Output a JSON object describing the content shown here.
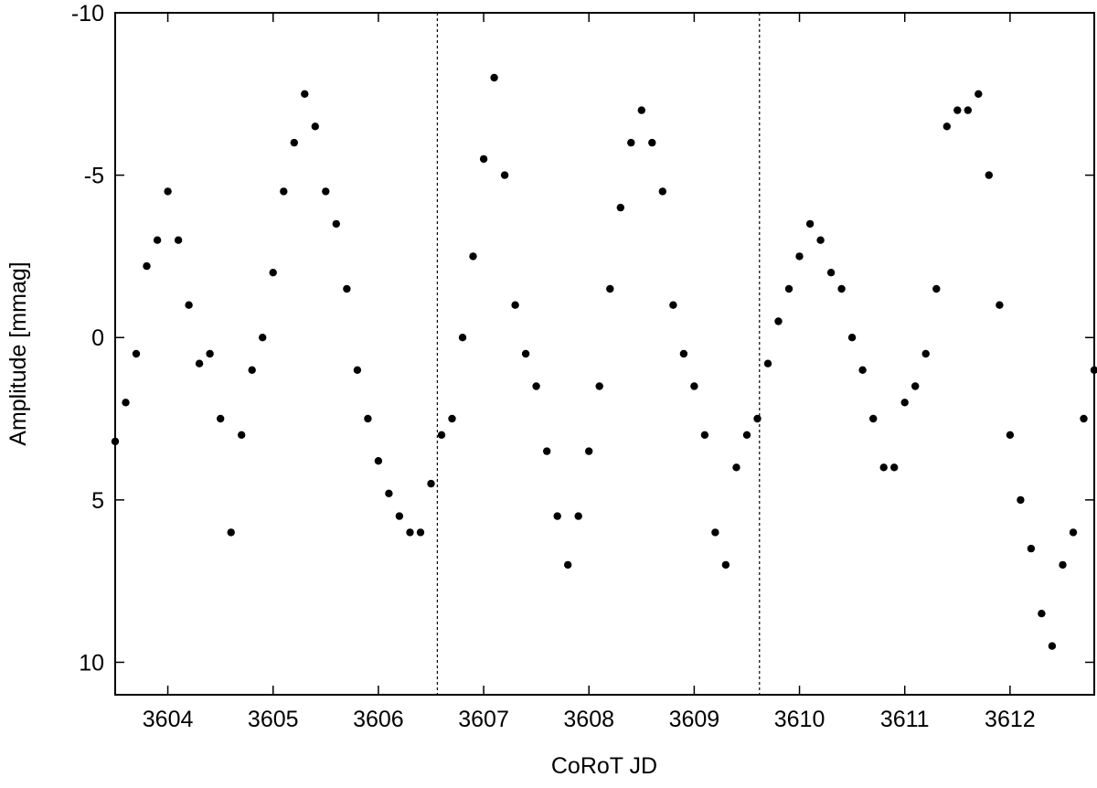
{
  "chart_data": {
    "type": "scatter",
    "title": "",
    "xlabel": "CoRoT JD",
    "ylabel": "Amplitude [mmag]",
    "xlim": [
      3603.5,
      3612.8
    ],
    "ylim": [
      11,
      -10
    ],
    "y_axis_inverted": true,
    "grid": false,
    "legend": "none",
    "marker_color": "#000000",
    "x_ticks": [
      3604,
      3605,
      3606,
      3607,
      3608,
      3609,
      3610,
      3611,
      3612
    ],
    "x_tick_labels": [
      "3604",
      "3605",
      "3606",
      "3607",
      "3608",
      "3609",
      "3610",
      "3611",
      "3612"
    ],
    "y_ticks": [
      -10,
      -5,
      0,
      5,
      10
    ],
    "y_tick_labels": [
      "-10",
      "-5",
      "0",
      "5",
      "10"
    ],
    "reference_lines_x": [
      3606.56,
      3609.62
    ],
    "reference_line_style": "dotted",
    "series": [
      {
        "x": [
          3603.5,
          3603.6,
          3603.7,
          3603.8,
          3603.9,
          3604.0,
          3604.1,
          3604.2,
          3604.3,
          3604.4,
          3604.5,
          3604.6,
          3604.7,
          3604.8,
          3604.9,
          3605.0,
          3605.1,
          3605.2,
          3605.3,
          3605.4,
          3605.5,
          3605.6,
          3605.7,
          3605.8,
          3605.9,
          3606.0,
          3606.1,
          3606.2,
          3606.3,
          3606.4,
          3606.5,
          3606.6,
          3606.7,
          3606.8,
          3606.9,
          3607.0,
          3607.1,
          3607.2,
          3607.3,
          3607.4,
          3607.5,
          3607.6,
          3607.7,
          3607.8,
          3607.9,
          3608.0,
          3608.1,
          3608.2,
          3608.3,
          3608.4,
          3608.5,
          3608.6,
          3608.7,
          3608.8,
          3608.9,
          3609.0,
          3609.1,
          3609.2,
          3609.3,
          3609.4,
          3609.5,
          3609.6,
          3609.7,
          3609.8,
          3609.9,
          3610.0,
          3610.1,
          3610.2,
          3610.3,
          3610.4,
          3610.5,
          3610.6,
          3610.7,
          3610.8,
          3610.9,
          3611.0,
          3611.1,
          3611.2,
          3611.3,
          3611.4,
          3611.5,
          3611.6,
          3611.7,
          3611.8,
          3611.9,
          3612.0,
          3612.1,
          3612.2,
          3612.3,
          3612.4,
          3612.5,
          3612.6,
          3612.7,
          3612.8
        ],
        "y": [
          3.2,
          2.0,
          0.5,
          -2.2,
          -3.0,
          -4.5,
          -3.0,
          -1.0,
          0.8,
          0.5,
          2.5,
          6.0,
          3.0,
          1.0,
          0.0,
          -2.0,
          -4.5,
          -6.0,
          -7.5,
          -6.5,
          -4.5,
          -3.5,
          -1.5,
          1.0,
          2.5,
          3.8,
          4.8,
          5.5,
          6.0,
          6.0,
          4.5,
          3.0,
          2.5,
          0.0,
          -2.5,
          -5.5,
          -8.0,
          -5.0,
          -1.0,
          0.5,
          1.5,
          3.5,
          5.5,
          7.0,
          5.5,
          3.5,
          1.5,
          -1.5,
          -4.0,
          -6.0,
          -7.0,
          -6.0,
          -4.5,
          -1.0,
          0.5,
          1.5,
          3.0,
          6.0,
          7.0,
          4.0,
          3.0,
          2.5,
          0.8,
          -0.5,
          -1.5,
          -2.5,
          -3.5,
          -3.0,
          -2.0,
          -1.5,
          0.0,
          1.0,
          2.5,
          4.0,
          4.0,
          2.0,
          1.5,
          0.5,
          -1.5,
          -6.5,
          -7.0,
          -7.0,
          -7.5,
          -5.0,
          -1.0,
          3.0,
          5.0,
          6.5,
          8.5,
          9.5,
          7.0,
          6.0,
          2.5,
          1.0
        ]
      }
    ]
  }
}
